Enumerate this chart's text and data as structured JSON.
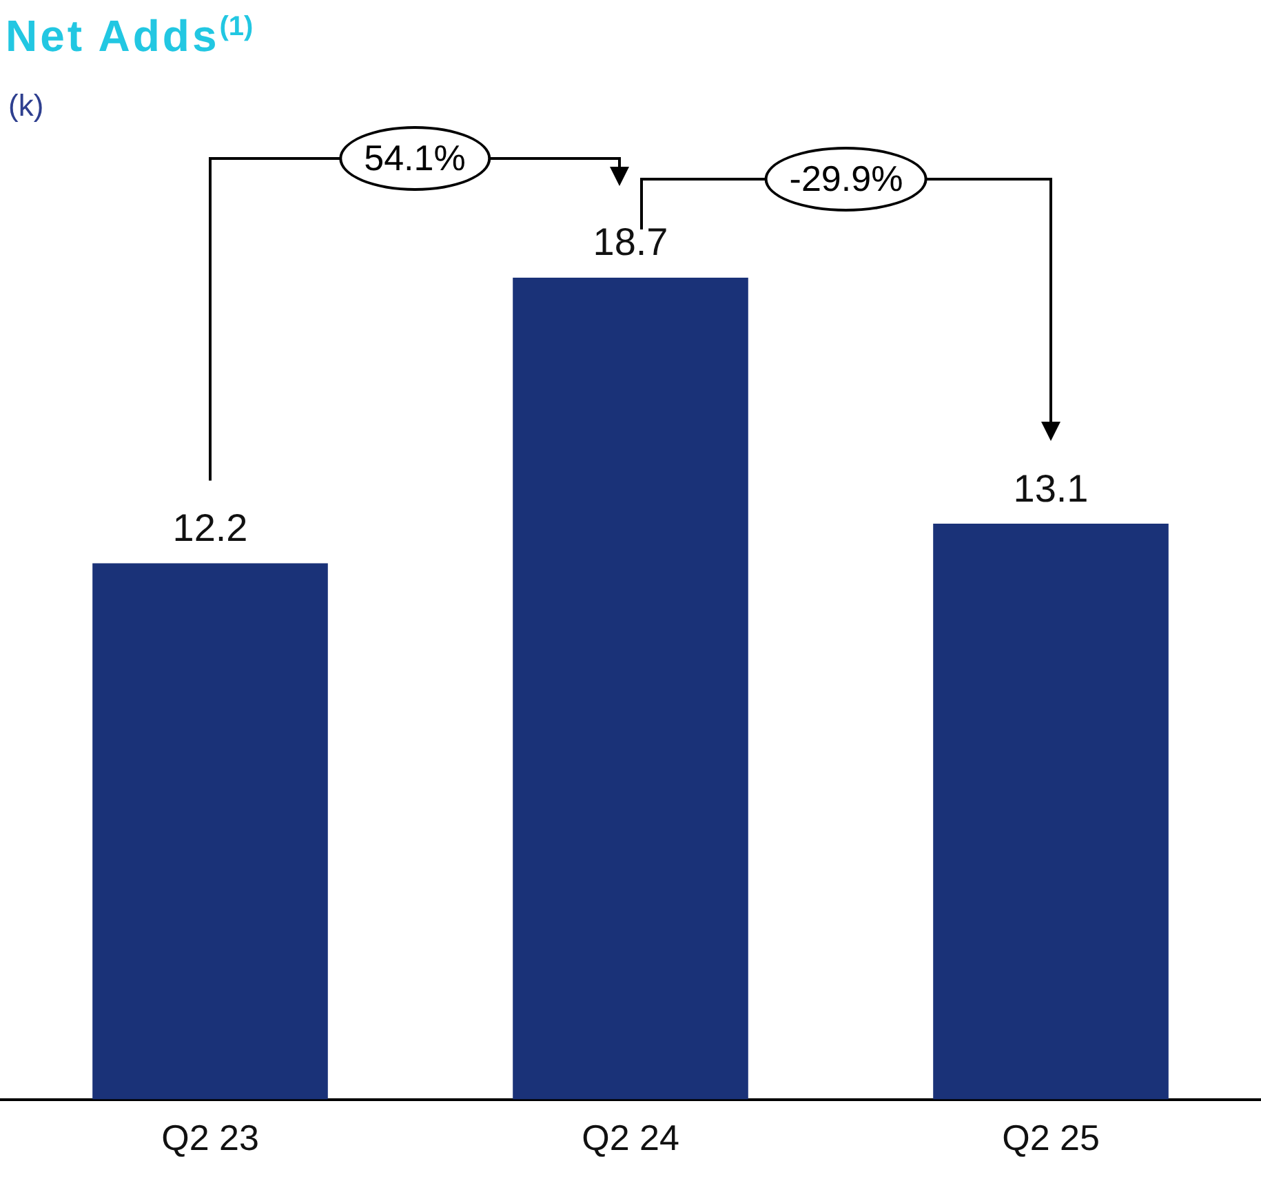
{
  "chart_data": {
    "type": "bar",
    "title": "Net Adds$^{(1)}$",
    "subtitle": "(k)",
    "categories": [
      "Q2 23",
      "Q2 24",
      "Q2 25"
    ],
    "values": [
      12.2,
      18.7,
      13.1
    ],
    "color": "#1a3278",
    "data_labels": true,
    "legend": false,
    "annotations": [
      "54.1%",
      "-29.9%"
    ]
  }
}
